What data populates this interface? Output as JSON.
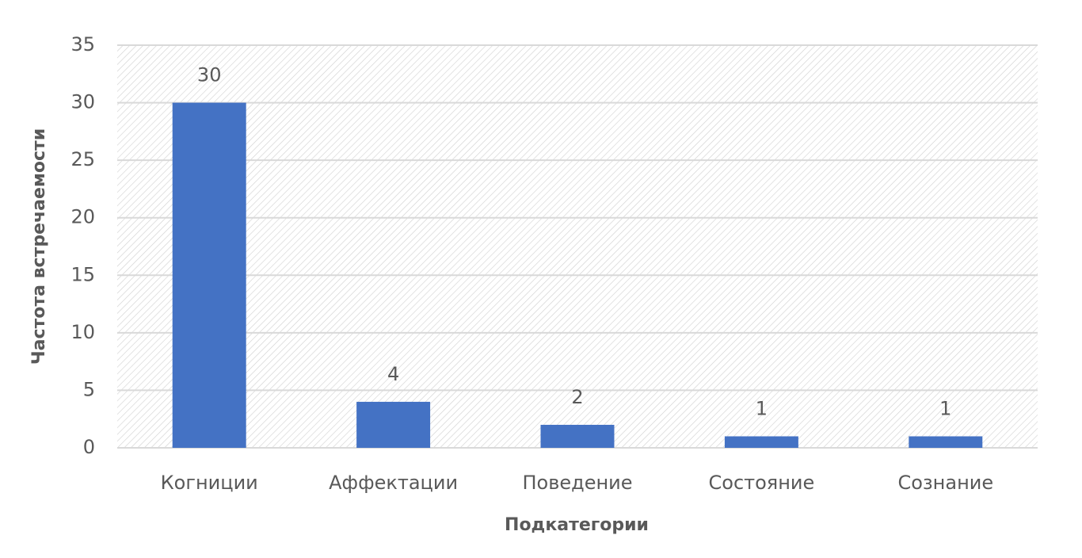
{
  "chart_data": {
    "type": "bar",
    "categories": [
      "Когниции",
      "Аффектации",
      "Поведение",
      "Состояние",
      "Сознание"
    ],
    "values": [
      30,
      4,
      2,
      1,
      1
    ],
    "color": "#4472c4",
    "x_label": "Подкатегории",
    "y_label": "Частота встречаемости",
    "ylim": [
      0,
      35
    ],
    "yticks": [
      0,
      5,
      10,
      15,
      20,
      25,
      30,
      35
    ],
    "grid": true,
    "data_labels": true
  }
}
